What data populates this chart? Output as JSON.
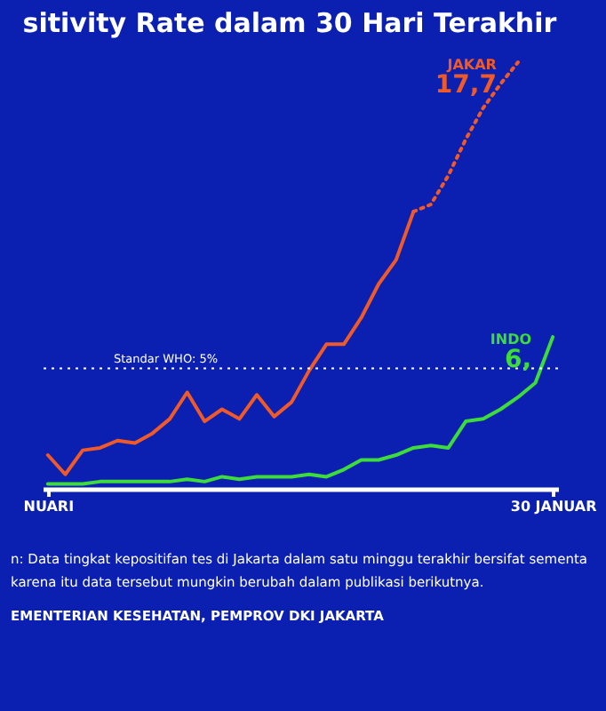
{
  "chart_data": {
    "type": "line",
    "title": "sitivity Rate dalam 30 Hari Terakhir",
    "categories": [
      "NUARI",
      null,
      null,
      null,
      null,
      null,
      null,
      null,
      null,
      null,
      null,
      null,
      null,
      null,
      null,
      null,
      null,
      null,
      null,
      null,
      null,
      null,
      null,
      null,
      null,
      null,
      null,
      null,
      null,
      "30 JANUAR"
    ],
    "series": [
      {
        "color": "#f05a28",
        "line_style": "solid",
        "values": [
          1.4,
          0.6,
          1.6,
          1.7,
          2.0,
          1.9,
          2.3,
          2.9,
          4.0,
          2.8,
          3.3,
          2.9,
          3.9,
          3.0,
          3.6,
          4.9,
          6.0,
          6.0,
          7.1,
          8.5,
          9.5,
          11.5,
          null,
          null,
          null,
          null,
          null,
          null,
          null,
          null
        ]
      },
      {
        "name": "JAKAR",
        "color": "#f05a28",
        "line_style": "dotted",
        "values": [
          null,
          null,
          null,
          null,
          null,
          null,
          null,
          null,
          null,
          null,
          null,
          null,
          null,
          null,
          null,
          null,
          null,
          null,
          null,
          null,
          null,
          11.5,
          11.8,
          13.0,
          14.5,
          15.8,
          16.8,
          17.7,
          null,
          null
        ],
        "value_labels": [
          null,
          null,
          null,
          null,
          null,
          null,
          null,
          null,
          null,
          null,
          null,
          null,
          null,
          null,
          null,
          null,
          null,
          null,
          null,
          null,
          null,
          null,
          null,
          null,
          null,
          null,
          null,
          "17,7",
          null,
          null
        ]
      },
      {
        "name": "INDO",
        "color": "#3ddc3a",
        "line_style": "solid",
        "values": [
          0.2,
          0.2,
          0.2,
          0.3,
          0.3,
          0.3,
          0.3,
          0.3,
          0.4,
          0.3,
          0.5,
          0.4,
          0.5,
          0.5,
          0.5,
          0.6,
          0.5,
          0.8,
          1.2,
          1.2,
          1.4,
          1.7,
          1.8,
          1.7,
          2.8,
          2.9,
          3.3,
          3.8,
          4.4,
          6.3
        ],
        "value_labels": [
          null,
          null,
          null,
          null,
          null,
          null,
          null,
          null,
          null,
          null,
          null,
          null,
          null,
          null,
          null,
          null,
          null,
          null,
          null,
          null,
          null,
          null,
          null,
          null,
          null,
          null,
          null,
          null,
          null,
          "6,"
        ]
      }
    ],
    "tick_labels": "x",
    "ref_lines": [
      {
        "axis": "y",
        "value": 5,
        "label": "Standar WHO: 5%",
        "color": "#ffffff",
        "line_style": "dotted"
      }
    ],
    "annotations": [
      "n: Data tingkat kepositifan tes di Jakarta dalam satu minggu terakhir bersifat sementa",
      "karena itu data tersebut mungkin berubah dalam publikasi berikutnya.",
      "EMENTERIAN KESEHATAN, PEMPROV DKI JAKARTA"
    ]
  }
}
